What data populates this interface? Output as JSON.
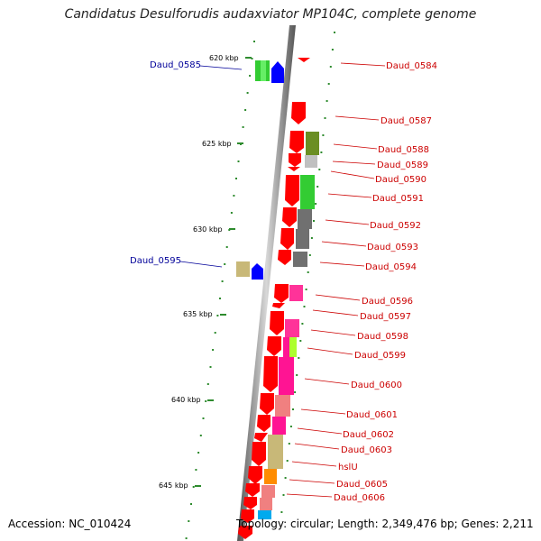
{
  "title": "Candidatus Desulforudis audaxviator MP104C, complete genome",
  "footer": {
    "accession": "Accession: NC_010424",
    "summary": "Topology: circular; Length: 2,349,476 bp; Genes: 2,211"
  },
  "colors": {
    "backbone": "#7a7a7a",
    "tick": "#2e8b2e",
    "label_right": "#cc0000",
    "label_left": "#000099",
    "strand_minus": "#ff0000",
    "strand_plus": "#0000ff"
  },
  "ruler_ticks": [
    {
      "label": "620 kbp"
    },
    {
      "label": "625 kbp"
    },
    {
      "label": "630 kbp"
    },
    {
      "label": "635 kbp"
    },
    {
      "label": "640 kbp"
    },
    {
      "label": "645 kbp"
    }
  ],
  "labels_right": [
    "Daud_0584",
    "Daud_0587",
    "Daud_0588",
    "Daud_0589",
    "Daud_0590",
    "Daud_0591",
    "Daud_0592",
    "Daud_0593",
    "Daud_0594",
    "Daud_0596",
    "Daud_0597",
    "Daud_0598",
    "Daud_0599",
    "Daud_0600",
    "Daud_0601",
    "Daud_0602",
    "Daud_0603",
    "hslU",
    "Daud_0605",
    "Daud_0606"
  ],
  "labels_left": [
    "Daud_0585",
    "Daud_0595"
  ]
}
